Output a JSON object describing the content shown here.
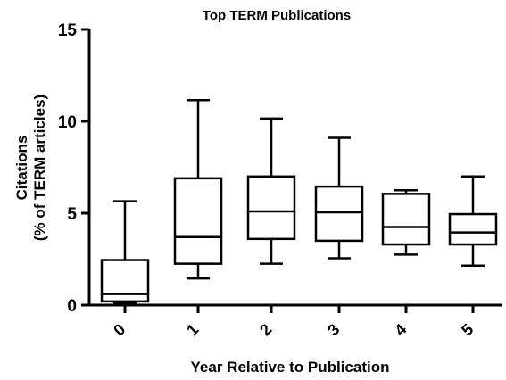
{
  "chart_data": {
    "type": "box",
    "title": "Top TERM Publications",
    "xlabel": "Year Relative to Publication",
    "ylabel_line1": "Citations",
    "ylabel_line2": "(% of  TERM articles)",
    "ylim": [
      0,
      15
    ],
    "yticks": [
      "0",
      "5",
      "10",
      "15"
    ],
    "ytick_values": [
      0,
      5,
      10,
      15
    ],
    "categories": [
      "0",
      "1",
      "2",
      "3",
      "4",
      "5"
    ],
    "boxes": [
      {
        "category": "0",
        "min": 0.1,
        "q1": 0.2,
        "median": 0.6,
        "q3": 2.45,
        "max": 5.65
      },
      {
        "category": "1",
        "min": 1.45,
        "q1": 2.25,
        "median": 3.7,
        "q3": 6.9,
        "max": 11.15
      },
      {
        "category": "2",
        "min": 2.25,
        "q1": 3.6,
        "median": 5.1,
        "q3": 7.0,
        "max": 10.15
      },
      {
        "category": "3",
        "min": 2.55,
        "q1": 3.5,
        "median": 5.05,
        "q3": 6.45,
        "max": 9.1
      },
      {
        "category": "4",
        "min": 2.75,
        "q1": 3.3,
        "median": 4.25,
        "q3": 6.05,
        "max": 6.25
      },
      {
        "category": "5",
        "min": 2.15,
        "q1": 3.3,
        "median": 3.95,
        "q3": 4.95,
        "max": 7.0
      }
    ],
    "grid": false,
    "legend": "none"
  }
}
